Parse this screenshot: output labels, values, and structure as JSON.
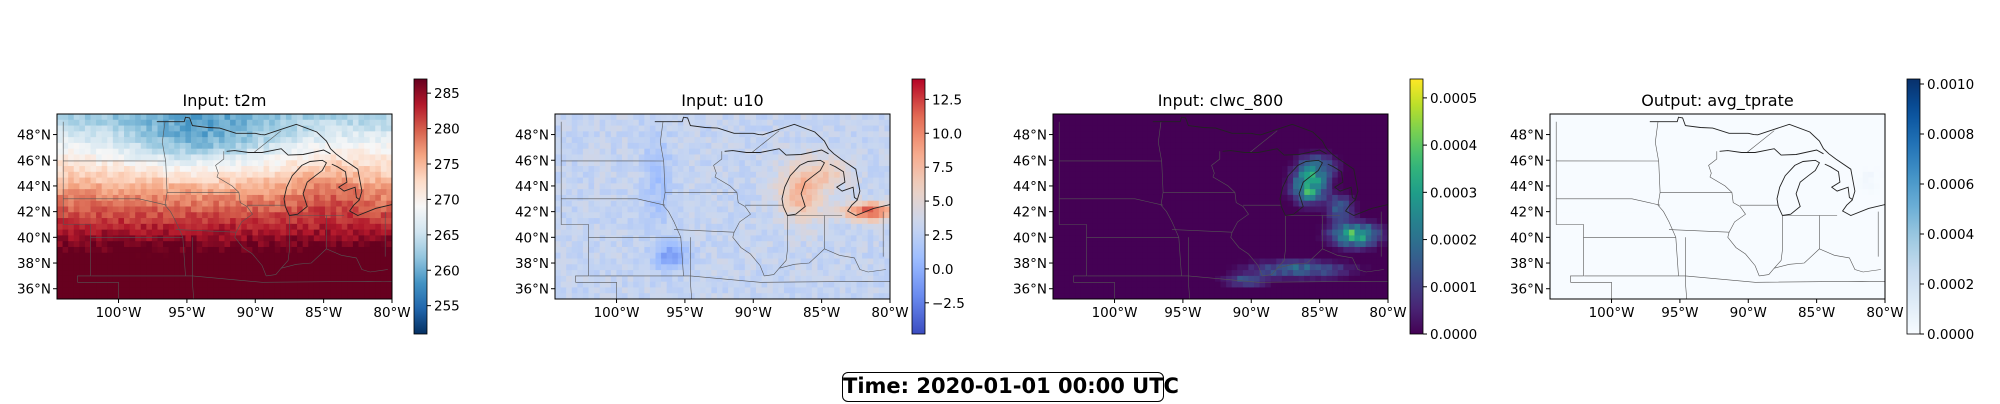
{
  "footer": {
    "time_label": "Time: 2020-01-01 00:00 UTC"
  },
  "chart_data": [
    {
      "type": "heatmap",
      "title": "Input: t2m",
      "colormap": "RdBu_r",
      "xlabel": "",
      "ylabel": "",
      "x_ticks": [
        "100°W",
        "95°W",
        "90°W",
        "85°W",
        "80°W"
      ],
      "y_ticks": [
        "48°N",
        "46°N",
        "44°N",
        "42°N",
        "40°N",
        "38°N",
        "36°N"
      ],
      "lon_range": [
        -104.5,
        -80
      ],
      "lat_range": [
        35.2,
        49.6
      ],
      "colorbar": {
        "ticks": [
          255,
          260,
          265,
          270,
          275,
          280,
          285
        ],
        "range": [
          251,
          287
        ],
        "tick_labels": [
          "255",
          "260",
          "265",
          "270",
          "275",
          "280",
          "285"
        ]
      },
      "field_description": "cold (blue ~258-268 K) across the north-central plains and upper Midwest, near 270 K over Great Lakes, warm (red ~278-285 K) across the south"
    },
    {
      "type": "heatmap",
      "title": "Input: u10",
      "colormap": "coolwarm",
      "xlabel": "",
      "ylabel": "",
      "x_ticks": [
        "100°W",
        "95°W",
        "90°W",
        "85°W",
        "80°W"
      ],
      "y_ticks": [
        "48°N",
        "46°N",
        "44°N",
        "42°N",
        "40°N",
        "38°N",
        "36°N"
      ],
      "lon_range": [
        -104.5,
        -80
      ],
      "lat_range": [
        35.2,
        49.6
      ],
      "colorbar": {
        "ticks": [
          -2.5,
          0.0,
          2.5,
          5.0,
          7.5,
          10.0,
          12.5
        ],
        "range": [
          -4.8,
          14
        ],
        "tick_labels": [
          "−2.5",
          "0.0",
          "2.5",
          "5.0",
          "7.5",
          "10.0",
          "12.5"
        ]
      },
      "field_description": "mostly weak westerly (~2-4 m/s, light red) everywhere, strongest (~10-13 m/s) over Lake Michigan/Lake Erie region near 83°W, 42°N"
    },
    {
      "type": "heatmap",
      "title": "Input: clwc_800",
      "colormap": "viridis",
      "xlabel": "",
      "ylabel": "",
      "x_ticks": [
        "100°W",
        "95°W",
        "90°W",
        "85°W",
        "80°W"
      ],
      "y_ticks": [
        "48°N",
        "46°N",
        "44°N",
        "42°N",
        "40°N",
        "38°N",
        "36°N"
      ],
      "lon_range": [
        -104.5,
        -80
      ],
      "lat_range": [
        35.2,
        49.6
      ],
      "colorbar": {
        "ticks": [
          0.0,
          0.0001,
          0.0002,
          0.0003,
          0.0004,
          0.0005
        ],
        "range": [
          0,
          0.00054
        ],
        "tick_labels": [
          "0.0000",
          "0.0001",
          "0.0002",
          "0.0003",
          "0.0004",
          "0.0005"
        ]
      },
      "field_description": "zero nearly everywhere; cloud liquid water maxima (~0.0003-0.0004) over Lake Michigan area near 86°W 44°N, near 82°W 40°N, and a band along the Ohio River near 37°N"
    },
    {
      "type": "heatmap",
      "title": "Output: avg_tprate",
      "colormap": "Blues",
      "xlabel": "",
      "ylabel": "",
      "x_ticks": [
        "100°W",
        "95°W",
        "90°W",
        "85°W",
        "80°W"
      ],
      "y_ticks": [
        "48°N",
        "46°N",
        "44°N",
        "42°N",
        "40°N",
        "38°N",
        "36°N"
      ],
      "lon_range": [
        -104.5,
        -80
      ],
      "lat_range": [
        35.2,
        49.6
      ],
      "colorbar": {
        "ticks": [
          0.0,
          0.0002,
          0.0004,
          0.0006,
          0.0008,
          0.001
        ],
        "range": [
          0,
          0.00102
        ],
        "tick_labels": [
          "0.0000",
          "0.0002",
          "0.0004",
          "0.0006",
          "0.0008",
          "0.0010"
        ]
      },
      "field_description": "near zero everywhere (white), very faint values near eastern Great Lakes"
    }
  ]
}
